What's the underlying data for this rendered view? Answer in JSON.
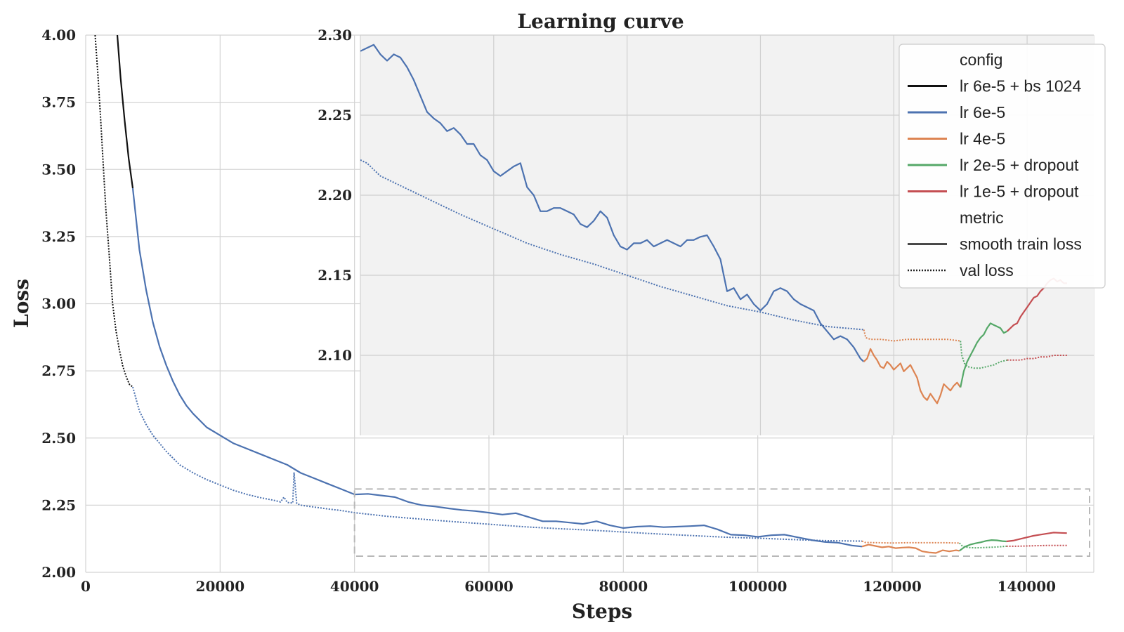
{
  "chart_data": {
    "type": "line",
    "title": "Learning curve",
    "xlabel": "Steps",
    "ylabel": "Loss",
    "xlim": [
      0,
      150000
    ],
    "ylim": [
      2.0,
      4.0
    ],
    "grid": true,
    "x_ticks": [
      0,
      20000,
      40000,
      60000,
      80000,
      100000,
      120000,
      140000
    ],
    "y_ticks": [
      2.0,
      2.25,
      2.5,
      2.75,
      3.0,
      3.25,
      3.5,
      3.75,
      4.0
    ],
    "x_tick_labels": [
      "0",
      "20000",
      "40000",
      "60000",
      "80000",
      "100000",
      "120000",
      "140000"
    ],
    "y_tick_labels": [
      "2.00",
      "2.25",
      "2.50",
      "2.75",
      "3.00",
      "3.25",
      "3.50",
      "3.75",
      "4.00"
    ],
    "colors": {
      "lr 6e-5 + bs 1024": "#111111",
      "lr 6e-5": "#4c72b0",
      "lr 4e-5": "#dd8452",
      "lr 2e-5 + dropout": "#55a868",
      "lr 1e-5 + dropout": "#c44e52"
    },
    "legend": {
      "placement": "top-right",
      "config_title": "config",
      "configs": [
        "lr 6e-5 + bs 1024",
        "lr 6e-5",
        "lr 4e-5",
        "lr 2e-5 + dropout",
        "lr 1e-5 + dropout"
      ],
      "metric_title": "metric",
      "metrics": [
        "smooth train loss",
        "val loss"
      ]
    },
    "series": [
      {
        "config": "lr 6e-5 + bs 1024",
        "metric": "smooth train loss",
        "x": [
          4700,
          5200,
          5800,
          6400,
          7000
        ],
        "y": [
          4.0,
          3.84,
          3.68,
          3.54,
          3.43
        ]
      },
      {
        "config": "lr 6e-5 + bs 1024",
        "metric": "val loss",
        "x": [
          1400,
          1800,
          2200,
          2600,
          3000,
          3500,
          4000,
          4500,
          5000,
          5500,
          6000,
          6500,
          7000
        ],
        "y": [
          4.0,
          3.86,
          3.7,
          3.52,
          3.35,
          3.18,
          3.0,
          2.9,
          2.83,
          2.77,
          2.73,
          2.7,
          2.69
        ]
      },
      {
        "config": "lr 6e-5",
        "metric": "smooth train loss",
        "x": [
          7000,
          8000,
          9000,
          10000,
          11000,
          12000,
          13000,
          14000,
          15000,
          16000,
          18000,
          20000,
          22000,
          24000,
          26000,
          28000,
          30000,
          32000,
          34000,
          36000,
          38000,
          40000,
          42000,
          44000,
          46000,
          48000,
          50000,
          52000,
          54000,
          56000,
          58000,
          60000,
          62000,
          64000,
          66000,
          68000,
          70000,
          72000,
          74000,
          76000,
          78000,
          80000,
          82000,
          84000,
          86000,
          88000,
          90000,
          92000,
          94000,
          96000,
          98000,
          100000,
          102000,
          104000,
          106000,
          108000,
          110000,
          112000,
          114000,
          115500
        ],
        "y": [
          3.43,
          3.2,
          3.05,
          2.93,
          2.84,
          2.77,
          2.71,
          2.66,
          2.62,
          2.59,
          2.54,
          2.51,
          2.48,
          2.46,
          2.44,
          2.42,
          2.4,
          2.37,
          2.35,
          2.33,
          2.31,
          2.29,
          2.292,
          2.286,
          2.28,
          2.262,
          2.25,
          2.245,
          2.238,
          2.232,
          2.228,
          2.222,
          2.215,
          2.22,
          2.205,
          2.19,
          2.19,
          2.185,
          2.18,
          2.19,
          2.175,
          2.165,
          2.17,
          2.172,
          2.168,
          2.17,
          2.172,
          2.175,
          2.16,
          2.14,
          2.138,
          2.132,
          2.138,
          2.14,
          2.13,
          2.12,
          2.113,
          2.11,
          2.1,
          2.096
        ]
      },
      {
        "config": "lr 6e-5",
        "metric": "val loss",
        "x": [
          7000,
          8000,
          9000,
          10000,
          12000,
          14000,
          16000,
          18000,
          20000,
          22000,
          24000,
          26000,
          28000,
          29000,
          29500,
          30000,
          30800,
          31000,
          31400,
          32000,
          34000,
          36000,
          38000,
          40000,
          45000,
          50000,
          55000,
          60000,
          65000,
          70000,
          75000,
          80000,
          85000,
          90000,
          95000,
          100000,
          105000,
          110000,
          115500
        ],
        "y": [
          2.69,
          2.6,
          2.55,
          2.51,
          2.45,
          2.4,
          2.37,
          2.345,
          2.325,
          2.305,
          2.29,
          2.278,
          2.268,
          2.262,
          2.28,
          2.26,
          2.258,
          2.37,
          2.256,
          2.25,
          2.243,
          2.236,
          2.23,
          2.222,
          2.208,
          2.198,
          2.188,
          2.179,
          2.17,
          2.163,
          2.157,
          2.15,
          2.143,
          2.137,
          2.131,
          2.127,
          2.122,
          2.118,
          2.116
        ]
      },
      {
        "config": "lr 4e-5",
        "metric": "smooth train loss",
        "x": [
          115500,
          116500,
          117500,
          118500,
          119500,
          120500,
          121500,
          122500,
          123500,
          124500,
          125500,
          126500,
          127500,
          128500,
          129500,
          130000
        ],
        "y": [
          2.096,
          2.103,
          2.098,
          2.093,
          2.096,
          2.09,
          2.092,
          2.093,
          2.09,
          2.078,
          2.074,
          2.072,
          2.082,
          2.078,
          2.082,
          2.08
        ]
      },
      {
        "config": "lr 4e-5",
        "metric": "val loss",
        "x": [
          115500,
          116000,
          118000,
          120000,
          122000,
          124000,
          126000,
          128000,
          130000
        ],
        "y": [
          2.116,
          2.111,
          2.11,
          2.109,
          2.11,
          2.11,
          2.11,
          2.11,
          2.109
        ]
      },
      {
        "config": "lr 2e-5 + dropout",
        "metric": "smooth train loss",
        "x": [
          130000,
          130800,
          131600,
          132400,
          133200,
          134000,
          134800,
          135600,
          136400,
          137000
        ],
        "y": [
          2.08,
          2.095,
          2.103,
          2.108,
          2.112,
          2.117,
          2.12,
          2.119,
          2.116,
          2.115
        ]
      },
      {
        "config": "lr 2e-5 + dropout",
        "metric": "val loss",
        "x": [
          130000,
          130500,
          131500,
          132500,
          133500,
          134500,
          135500,
          136500,
          137000
        ],
        "y": [
          2.109,
          2.096,
          2.092,
          2.091,
          2.092,
          2.093,
          2.094,
          2.096,
          2.097
        ]
      },
      {
        "config": "lr 1e-5 + dropout",
        "metric": "smooth train loss",
        "x": [
          137000,
          138000,
          139000,
          140000,
          141000,
          142000,
          143000,
          144000,
          145000,
          146000
        ],
        "y": [
          2.115,
          2.118,
          2.124,
          2.13,
          2.136,
          2.14,
          2.144,
          2.148,
          2.147,
          2.146
        ]
      },
      {
        "config": "lr 1e-5 + dropout",
        "metric": "val loss",
        "x": [
          137000,
          138500,
          140000,
          141500,
          143000,
          144500,
          146000
        ],
        "y": [
          2.097,
          2.097,
          2.098,
          2.099,
          2.1,
          2.1,
          2.1
        ]
      }
    ],
    "inset": {
      "xlim": [
        40000,
        150000
      ],
      "ylim": [
        2.05,
        2.3
      ],
      "y_ticks": [
        2.1,
        2.15,
        2.2,
        2.25,
        2.3
      ],
      "y_tick_labels": [
        "2.10",
        "2.15",
        "2.20",
        "2.25",
        "2.30"
      ],
      "zoom_region": {
        "x": [
          40000,
          150000
        ],
        "y": [
          2.06,
          2.31
        ]
      },
      "series": [
        {
          "config": "lr 6e-5",
          "metric": "smooth train loss",
          "x": [
            40000,
            41000,
            42000,
            43000,
            44000,
            45000,
            46000,
            47000,
            48000,
            49000,
            50000,
            51000,
            52000,
            53000,
            54000,
            55000,
            56000,
            57000,
            58000,
            59000,
            60000,
            61000,
            62000,
            63000,
            64000,
            65000,
            66000,
            67000,
            68000,
            69000,
            70000,
            71000,
            72000,
            73000,
            74000,
            75000,
            76000,
            77000,
            78000,
            79000,
            80000,
            81000,
            82000,
            83000,
            84000,
            85000,
            86000,
            87000,
            88000,
            89000,
            90000,
            91000,
            92000,
            93000,
            94000,
            95000,
            96000,
            97000,
            98000,
            99000,
            100000,
            101000,
            102000,
            103000,
            104000,
            105000,
            106000,
            107000,
            108000,
            109000,
            110000,
            111000,
            112000,
            113000,
            114000,
            115000,
            115500
          ],
          "y": [
            2.29,
            2.292,
            2.294,
            2.288,
            2.284,
            2.288,
            2.286,
            2.28,
            2.272,
            2.262,
            2.252,
            2.248,
            2.245,
            2.24,
            2.242,
            2.238,
            2.232,
            2.232,
            2.225,
            2.222,
            2.215,
            2.212,
            2.215,
            2.218,
            2.22,
            2.205,
            2.2,
            2.19,
            2.19,
            2.192,
            2.192,
            2.19,
            2.188,
            2.182,
            2.18,
            2.184,
            2.19,
            2.186,
            2.175,
            2.168,
            2.166,
            2.17,
            2.17,
            2.172,
            2.168,
            2.17,
            2.172,
            2.17,
            2.168,
            2.172,
            2.172,
            2.174,
            2.175,
            2.168,
            2.16,
            2.14,
            2.142,
            2.135,
            2.138,
            2.132,
            2.128,
            2.132,
            2.14,
            2.142,
            2.14,
            2.135,
            2.132,
            2.13,
            2.128,
            2.12,
            2.115,
            2.11,
            2.112,
            2.11,
            2.105,
            2.098,
            2.096
          ]
        },
        {
          "config": "lr 6e-5",
          "metric": "val loss",
          "x": [
            40000,
            41000,
            42000,
            43000,
            45000,
            47000,
            50000,
            55000,
            60000,
            65000,
            70000,
            75000,
            80000,
            85000,
            90000,
            95000,
            100000,
            105000,
            110000,
            115500
          ],
          "y": [
            2.222,
            2.22,
            2.216,
            2.212,
            2.208,
            2.204,
            2.198,
            2.188,
            2.179,
            2.17,
            2.163,
            2.157,
            2.15,
            2.143,
            2.137,
            2.131,
            2.127,
            2.122,
            2.118,
            2.116
          ]
        },
        {
          "config": "lr 4e-5",
          "metric": "smooth train loss",
          "x": [
            115500,
            116000,
            116500,
            117000,
            117500,
            118000,
            118500,
            119000,
            119500,
            120000,
            120500,
            121000,
            121500,
            122000,
            122500,
            123000,
            123500,
            124000,
            124500,
            125000,
            125500,
            126000,
            126500,
            127000,
            127500,
            128000,
            128500,
            129000,
            129500,
            130000
          ],
          "y": [
            2.096,
            2.098,
            2.104,
            2.1,
            2.097,
            2.093,
            2.092,
            2.096,
            2.094,
            2.091,
            2.093,
            2.095,
            2.09,
            2.092,
            2.094,
            2.09,
            2.086,
            2.078,
            2.074,
            2.072,
            2.076,
            2.073,
            2.07,
            2.075,
            2.082,
            2.08,
            2.078,
            2.081,
            2.083,
            2.08
          ]
        },
        {
          "config": "lr 4e-5",
          "metric": "val loss",
          "x": [
            115500,
            115800,
            116500,
            118000,
            120000,
            122000,
            124000,
            126000,
            128000,
            130000
          ],
          "y": [
            2.116,
            2.111,
            2.11,
            2.11,
            2.109,
            2.11,
            2.11,
            2.11,
            2.11,
            2.109
          ]
        },
        {
          "config": "lr 2e-5 + dropout",
          "metric": "smooth train loss",
          "x": [
            130000,
            130500,
            131000,
            131500,
            132000,
            132500,
            133000,
            133500,
            134000,
            134500,
            135000,
            135500,
            136000,
            136500,
            137000
          ],
          "y": [
            2.08,
            2.09,
            2.096,
            2.1,
            2.104,
            2.108,
            2.111,
            2.113,
            2.117,
            2.12,
            2.119,
            2.118,
            2.117,
            2.114,
            2.115
          ]
        },
        {
          "config": "lr 2e-5 + dropout",
          "metric": "val loss",
          "x": [
            130000,
            130200,
            130600,
            131000,
            132000,
            133000,
            134000,
            135000,
            136000,
            137000
          ],
          "y": [
            2.109,
            2.1,
            2.095,
            2.093,
            2.092,
            2.092,
            2.093,
            2.094,
            2.096,
            2.097
          ]
        },
        {
          "config": "lr 1e-5 + dropout",
          "metric": "smooth train loss",
          "x": [
            137000,
            137500,
            138000,
            138500,
            139000,
            139500,
            140000,
            140500,
            141000,
            141500,
            142000,
            142500,
            143000,
            143500,
            144000,
            144500,
            145000,
            145500,
            146000
          ],
          "y": [
            2.115,
            2.117,
            2.119,
            2.12,
            2.124,
            2.127,
            2.13,
            2.133,
            2.136,
            2.137,
            2.14,
            2.142,
            2.145,
            2.147,
            2.148,
            2.146,
            2.147,
            2.145,
            2.145
          ]
        },
        {
          "config": "lr 1e-5 + dropout",
          "metric": "val loss",
          "x": [
            137000,
            138000,
            139000,
            140000,
            141000,
            142000,
            143000,
            144000,
            145000,
            146000
          ],
          "y": [
            2.097,
            2.097,
            2.097,
            2.098,
            2.098,
            2.099,
            2.099,
            2.1,
            2.1,
            2.1
          ]
        }
      ]
    }
  }
}
